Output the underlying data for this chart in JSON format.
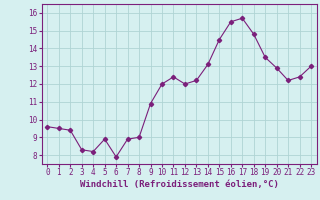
{
  "x": [
    0,
    1,
    2,
    3,
    4,
    5,
    6,
    7,
    8,
    9,
    10,
    11,
    12,
    13,
    14,
    15,
    16,
    17,
    18,
    19,
    20,
    21,
    22,
    23
  ],
  "y": [
    9.6,
    9.5,
    9.4,
    8.3,
    8.2,
    8.9,
    7.9,
    8.9,
    9.0,
    10.9,
    12.0,
    12.4,
    12.0,
    12.2,
    13.1,
    14.5,
    15.5,
    15.7,
    14.8,
    13.5,
    12.9,
    12.2,
    12.4,
    13.0
  ],
  "line_color": "#7b1f7b",
  "marker": "D",
  "marker_size": 2.2,
  "bg_color": "#d6f0f0",
  "grid_color": "#afd4d4",
  "xlabel": "Windchill (Refroidissement éolien,°C)",
  "xlim": [
    -0.5,
    23.5
  ],
  "ylim": [
    7.5,
    16.5
  ],
  "yticks": [
    8,
    9,
    10,
    11,
    12,
    13,
    14,
    15,
    16
  ],
  "xticks": [
    0,
    1,
    2,
    3,
    4,
    5,
    6,
    7,
    8,
    9,
    10,
    11,
    12,
    13,
    14,
    15,
    16,
    17,
    18,
    19,
    20,
    21,
    22,
    23
  ],
  "tick_labelsize": 5.5,
  "xlabel_fontsize": 6.5,
  "spine_color": "#7b1f7b"
}
